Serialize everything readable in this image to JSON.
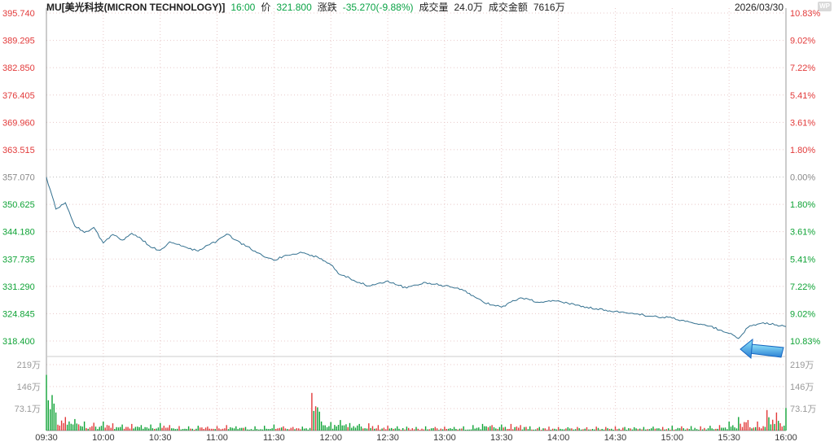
{
  "header": {
    "symbol_title": "MU[美光科技(MICRON TECHNOLOGY)]",
    "time": "16:00",
    "price_label": "价",
    "price": "321.800",
    "change_label": "涨跌",
    "change": "-35.270(-9.88%)",
    "volume_label": "成交量",
    "volume": "24.0万",
    "turnover_label": "成交金额",
    "turnover": "7616万",
    "date": "2026/03/30",
    "watermark": "WP"
  },
  "axes": {
    "left_price_labels": [
      "395.740",
      "389.295",
      "382.850",
      "376.405",
      "369.960",
      "363.515",
      "357.070",
      "350.625",
      "344.180",
      "337.735",
      "331.290",
      "324.845",
      "318.400"
    ],
    "right_percent_labels": [
      "10.83%",
      "9.02%",
      "7.22%",
      "5.41%",
      "3.61%",
      "1.80%",
      "0.00%",
      "1.80%",
      "3.61%",
      "5.41%",
      "7.22%",
      "9.02%",
      "10.83%"
    ],
    "left_volume_labels": [
      "219万",
      "146万",
      "73.1万"
    ],
    "right_volume_labels": [
      "219万",
      "146万",
      "73.1万"
    ],
    "time_labels": [
      "09:30",
      "10:00",
      "10:30",
      "11:00",
      "11:30",
      "12:00",
      "12:30",
      "13:00",
      "13:30",
      "14:00",
      "14:30",
      "15:00",
      "15:30",
      "16:00"
    ]
  },
  "chart_data": {
    "type": "line",
    "title": "MU Micron Technology intraday price and volume",
    "prev_close": 357.07,
    "last_price": 321.8,
    "price_axis_max": 395.74,
    "price_axis_min": 318.4,
    "percent_axis_max": 10.83,
    "volume_axis_max_wan": 219,
    "time_start": "09:30",
    "time_end": "16:00",
    "time_start_min": 570,
    "time_end_min": 960,
    "interval_min": 5,
    "prices": [
      357.0,
      349.5,
      351.0,
      345.5,
      344.0,
      345.2,
      341.5,
      343.5,
      342.2,
      343.8,
      342.5,
      340.5,
      339.8,
      341.8,
      341.2,
      340.2,
      339.6,
      341.0,
      342.0,
      343.6,
      342.2,
      340.8,
      339.6,
      338.2,
      337.4,
      338.4,
      338.9,
      339.2,
      338.6,
      337.8,
      336.4,
      334.0,
      333.2,
      332.2,
      331.4,
      332.0,
      332.6,
      331.6,
      330.9,
      331.6,
      332.2,
      331.8,
      331.4,
      330.9,
      330.3,
      329.1,
      327.7,
      326.9,
      326.4,
      327.6,
      328.6,
      328.1,
      327.5,
      327.9,
      327.9,
      327.3,
      326.9,
      326.4,
      326.0,
      325.7,
      325.4,
      325.1,
      324.8,
      324.5,
      324.2,
      324.0,
      323.8,
      323.3,
      322.8,
      322.4,
      321.9,
      321.0,
      320.2,
      319.0,
      321.6,
      322.4,
      322.7,
      322.2,
      321.8
    ],
    "volumes_wan": [
      185,
      60,
      45,
      38,
      30,
      26,
      30,
      24,
      20,
      22,
      18,
      20,
      25,
      18,
      15,
      14,
      16,
      13,
      15,
      18,
      14,
      12,
      14,
      16,
      20,
      14,
      12,
      13,
      125,
      30,
      28,
      35,
      25,
      22,
      24,
      18,
      16,
      14,
      13,
      12,
      14,
      12,
      13,
      12,
      14,
      18,
      22,
      18,
      20,
      22,
      18,
      14,
      12,
      13,
      12,
      11,
      12,
      11,
      13,
      12,
      14,
      12,
      11,
      12,
      13,
      12,
      16,
      14,
      15,
      14,
      16,
      18,
      30,
      45,
      35,
      30,
      68,
      60,
      75
    ],
    "legend": [],
    "grid": true
  },
  "colors": {
    "up": "#e23a3a",
    "down": "#0fa336",
    "neutral": "#888888",
    "line": "#33708f",
    "grid": "#e8c8c8",
    "mid_grid": "#bdbdbd",
    "frame": "#999999",
    "axis_text": "#999999",
    "time_text": "#3a3a3a",
    "green_text": "#0aa345",
    "cursor_light": "#8fe2f8",
    "cursor_dark": "#2a7fd4"
  }
}
